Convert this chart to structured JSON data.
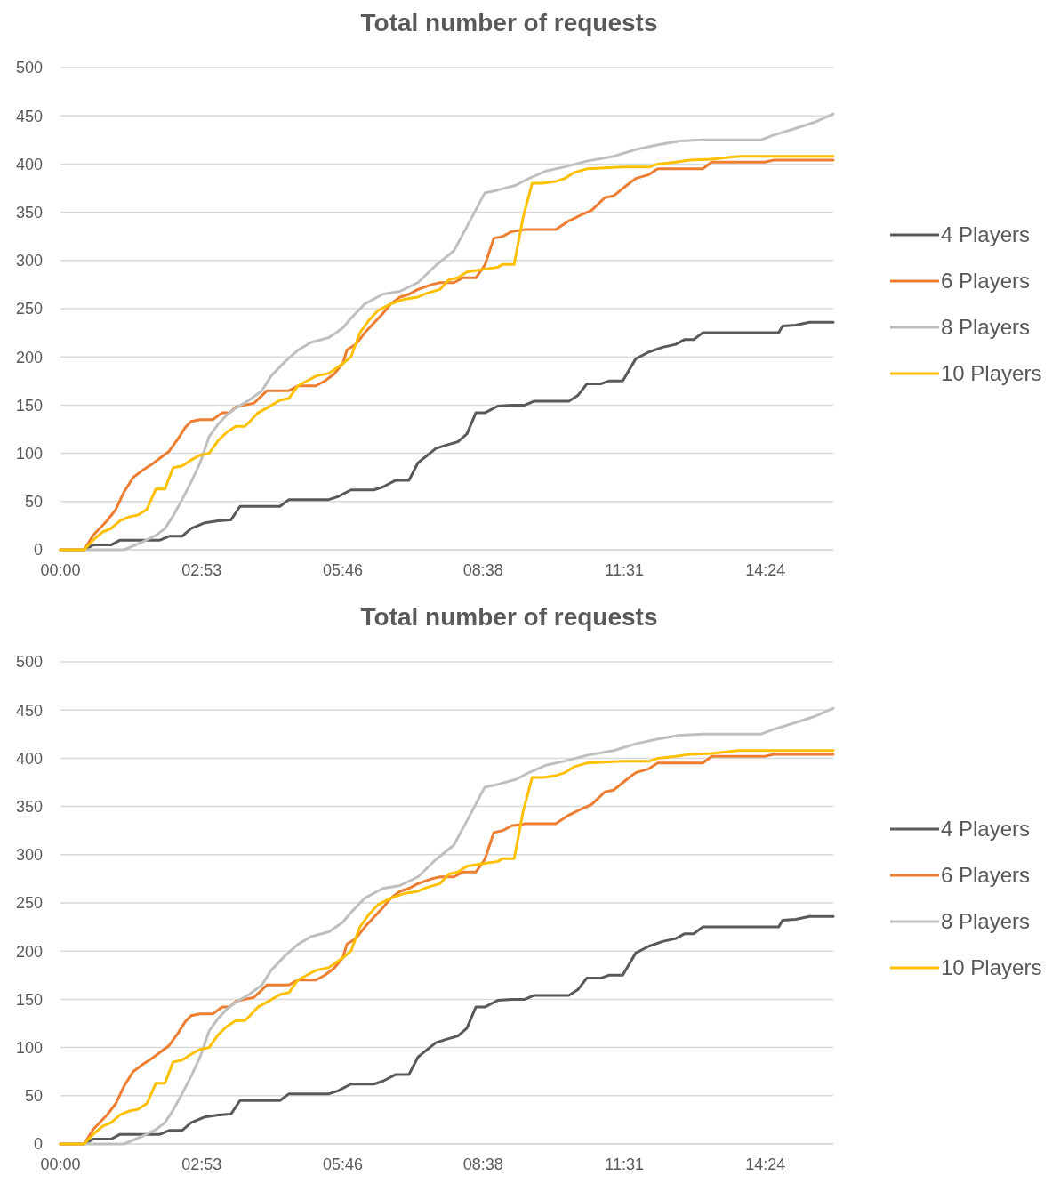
{
  "chart_data": [
    {
      "type": "line",
      "title": "Total number of requests",
      "xlim": [
        0,
        947
      ],
      "xticks": [
        {
          "value": 0,
          "label": "00:00"
        },
        {
          "value": 173,
          "label": "02:53"
        },
        {
          "value": 346,
          "label": "05:46"
        },
        {
          "value": 518,
          "label": "08:38"
        },
        {
          "value": 691,
          "label": "11:31"
        },
        {
          "value": 864,
          "label": "14:24"
        }
      ],
      "ylim": [
        0,
        500
      ],
      "yticks": [
        0,
        50,
        100,
        150,
        200,
        250,
        300,
        350,
        400,
        450,
        500
      ],
      "grid": "y",
      "legend": "right",
      "marker": "none",
      "series": [
        {
          "name": "4 Players",
          "color": "#595959",
          "x": [
            0,
            29,
            40,
            62,
            73,
            106,
            122,
            133,
            149,
            160,
            177,
            193,
            209,
            220,
            269,
            280,
            329,
            340,
            356,
            384,
            395,
            411,
            427,
            438,
            460,
            471,
            487,
            498,
            509,
            520,
            536,
            553,
            569,
            580,
            623,
            634,
            645,
            662,
            672,
            689,
            705,
            721,
            738,
            754,
            765,
            776,
            787,
            863,
            880,
            885,
            901,
            918,
            947
          ],
          "values": [
            0,
            0,
            5,
            5,
            10,
            10,
            10,
            14,
            14,
            22,
            28,
            30,
            31,
            45,
            45,
            52,
            52,
            55,
            62,
            62,
            65,
            72,
            72,
            90,
            105,
            108,
            112,
            120,
            142,
            142,
            149,
            150,
            150,
            154,
            154,
            160,
            172,
            172,
            175,
            175,
            198,
            205,
            210,
            213,
            218,
            218,
            225,
            225,
            225,
            232,
            233,
            236,
            236
          ]
        },
        {
          "name": "6 Players",
          "color": "#ed7d31",
          "x": [
            0,
            29,
            40,
            57,
            68,
            78,
            89,
            100,
            111,
            122,
            133,
            144,
            153,
            160,
            171,
            187,
            198,
            207,
            215,
            226,
            237,
            247,
            253,
            280,
            291,
            313,
            324,
            335,
            346,
            351,
            362,
            373,
            384,
            395,
            405,
            416,
            427,
            438,
            455,
            465,
            482,
            493,
            509,
            520,
            531,
            542,
            553,
            569,
            585,
            607,
            623,
            640,
            651,
            667,
            678,
            694,
            705,
            721,
            732,
            754,
            787,
            798,
            863,
            874,
            947
          ],
          "values": [
            0,
            0,
            15,
            30,
            42,
            60,
            75,
            82,
            88,
            95,
            102,
            115,
            127,
            133,
            135,
            135,
            142,
            142,
            148,
            150,
            152,
            160,
            165,
            165,
            170,
            170,
            175,
            182,
            193,
            207,
            213,
            225,
            235,
            245,
            255,
            262,
            265,
            270,
            275,
            277,
            277,
            282,
            282,
            295,
            323,
            325,
            330,
            332,
            332,
            332,
            341,
            348,
            352,
            365,
            367,
            378,
            385,
            389,
            395,
            395,
            395,
            402,
            402,
            404,
            404
          ]
        },
        {
          "name": "8 Players",
          "color": "#bfbfbf",
          "x": [
            0,
            78,
            100,
            117,
            128,
            138,
            149,
            160,
            171,
            182,
            193,
            204,
            215,
            231,
            247,
            258,
            275,
            291,
            307,
            329,
            346,
            356,
            373,
            395,
            416,
            438,
            460,
            482,
            498,
            520,
            536,
            558,
            574,
            596,
            618,
            645,
            678,
            705,
            732,
            760,
            787,
            858,
            874,
            901,
            923,
            947
          ],
          "values": [
            0,
            0,
            8,
            15,
            22,
            35,
            52,
            70,
            90,
            117,
            130,
            140,
            147,
            155,
            165,
            180,
            195,
            207,
            215,
            220,
            230,
            240,
            255,
            265,
            268,
            277,
            295,
            310,
            335,
            370,
            373,
            378,
            385,
            393,
            397,
            403,
            408,
            415,
            420,
            424,
            425,
            425,
            430,
            437,
            443,
            452
          ]
        },
        {
          "name": "10 Players",
          "color": "#ffc000",
          "x": [
            0,
            29,
            40,
            51,
            62,
            73,
            84,
            95,
            106,
            117,
            128,
            138,
            149,
            160,
            171,
            182,
            193,
            204,
            215,
            226,
            231,
            242,
            253,
            269,
            280,
            291,
            302,
            313,
            329,
            346,
            356,
            367,
            378,
            389,
            405,
            422,
            438,
            449,
            465,
            476,
            487,
            498,
            520,
            536,
            542,
            556,
            567,
            578,
            591,
            607,
            618,
            629,
            645,
            689,
            722,
            732,
            754,
            771,
            798,
            831,
            947
          ],
          "values": [
            0,
            0,
            10,
            18,
            22,
            30,
            34,
            36,
            42,
            63,
            63,
            85,
            87,
            93,
            98,
            100,
            113,
            122,
            128,
            128,
            132,
            142,
            147,
            155,
            157,
            170,
            175,
            180,
            183,
            193,
            200,
            225,
            238,
            248,
            255,
            260,
            262,
            266,
            270,
            280,
            282,
            288,
            291,
            293,
            296,
            296,
            345,
            380,
            380,
            382,
            385,
            391,
            395,
            397,
            397,
            400,
            402,
            404,
            405,
            408,
            408
          ]
        }
      ]
    },
    {
      "type": "line",
      "title": "Total number of requests",
      "xlim": [
        0,
        947
      ],
      "xticks": [
        {
          "value": 0,
          "label": "00:00"
        },
        {
          "value": 173,
          "label": "02:53"
        },
        {
          "value": 346,
          "label": "05:46"
        },
        {
          "value": 518,
          "label": "08:38"
        },
        {
          "value": 691,
          "label": "11:31"
        },
        {
          "value": 864,
          "label": "14:24"
        }
      ],
      "ylim": [
        0,
        500
      ],
      "yticks": [
        0,
        50,
        100,
        150,
        200,
        250,
        300,
        350,
        400,
        450,
        500
      ],
      "grid": "y",
      "legend": "right",
      "marker": "none",
      "series": [
        {
          "name": "4 Players",
          "color": "#595959",
          "x": [
            0,
            29,
            40,
            62,
            73,
            106,
            122,
            133,
            149,
            160,
            177,
            193,
            209,
            220,
            269,
            280,
            329,
            340,
            356,
            384,
            395,
            411,
            427,
            438,
            460,
            471,
            487,
            498,
            509,
            520,
            536,
            553,
            569,
            580,
            623,
            634,
            645,
            662,
            672,
            689,
            705,
            721,
            738,
            754,
            765,
            776,
            787,
            863,
            880,
            885,
            901,
            918,
            947
          ],
          "values": [
            0,
            0,
            5,
            5,
            10,
            10,
            10,
            14,
            14,
            22,
            28,
            30,
            31,
            45,
            45,
            52,
            52,
            55,
            62,
            62,
            65,
            72,
            72,
            90,
            105,
            108,
            112,
            120,
            142,
            142,
            149,
            150,
            150,
            154,
            154,
            160,
            172,
            172,
            175,
            175,
            198,
            205,
            210,
            213,
            218,
            218,
            225,
            225,
            225,
            232,
            233,
            236,
            236
          ]
        },
        {
          "name": "6 Players",
          "color": "#ed7d31",
          "x": [
            0,
            29,
            40,
            57,
            68,
            78,
            89,
            100,
            111,
            122,
            133,
            144,
            153,
            160,
            171,
            187,
            198,
            207,
            215,
            226,
            237,
            247,
            253,
            280,
            291,
            313,
            324,
            335,
            346,
            351,
            362,
            373,
            384,
            395,
            405,
            416,
            427,
            438,
            455,
            465,
            482,
            493,
            509,
            520,
            531,
            542,
            553,
            569,
            585,
            607,
            623,
            640,
            651,
            667,
            678,
            694,
            705,
            721,
            732,
            754,
            787,
            798,
            863,
            874,
            947
          ],
          "values": [
            0,
            0,
            15,
            30,
            42,
            60,
            75,
            82,
            88,
            95,
            102,
            115,
            127,
            133,
            135,
            135,
            142,
            142,
            148,
            150,
            152,
            160,
            165,
            165,
            170,
            170,
            175,
            182,
            193,
            207,
            213,
            225,
            235,
            245,
            255,
            262,
            265,
            270,
            275,
            277,
            277,
            282,
            282,
            295,
            323,
            325,
            330,
            332,
            332,
            332,
            341,
            348,
            352,
            365,
            367,
            378,
            385,
            389,
            395,
            395,
            395,
            402,
            402,
            404,
            404
          ]
        },
        {
          "name": "8 Players",
          "color": "#bfbfbf",
          "x": [
            0,
            78,
            100,
            117,
            128,
            138,
            149,
            160,
            171,
            182,
            193,
            204,
            215,
            231,
            247,
            258,
            275,
            291,
            307,
            329,
            346,
            356,
            373,
            395,
            416,
            438,
            460,
            482,
            498,
            520,
            536,
            558,
            574,
            596,
            618,
            645,
            678,
            705,
            732,
            760,
            787,
            858,
            874,
            901,
            923,
            947
          ],
          "values": [
            0,
            0,
            8,
            15,
            22,
            35,
            52,
            70,
            90,
            117,
            130,
            140,
            147,
            155,
            165,
            180,
            195,
            207,
            215,
            220,
            230,
            240,
            255,
            265,
            268,
            277,
            295,
            310,
            335,
            370,
            373,
            378,
            385,
            393,
            397,
            403,
            408,
            415,
            420,
            424,
            425,
            425,
            430,
            437,
            443,
            452
          ]
        },
        {
          "name": "10 Players",
          "color": "#ffc000",
          "x": [
            0,
            29,
            40,
            51,
            62,
            73,
            84,
            95,
            106,
            117,
            128,
            138,
            149,
            160,
            171,
            182,
            193,
            204,
            215,
            226,
            231,
            242,
            253,
            269,
            280,
            291,
            302,
            313,
            329,
            346,
            356,
            367,
            378,
            389,
            405,
            422,
            438,
            449,
            465,
            476,
            487,
            498,
            520,
            536,
            542,
            556,
            567,
            578,
            591,
            607,
            618,
            629,
            645,
            689,
            722,
            732,
            754,
            771,
            798,
            831,
            947
          ],
          "values": [
            0,
            0,
            10,
            18,
            22,
            30,
            34,
            36,
            42,
            63,
            63,
            85,
            87,
            93,
            98,
            100,
            113,
            122,
            128,
            128,
            132,
            142,
            147,
            155,
            157,
            170,
            175,
            180,
            183,
            193,
            200,
            225,
            238,
            248,
            255,
            260,
            262,
            266,
            270,
            280,
            282,
            288,
            291,
            293,
            296,
            296,
            345,
            380,
            380,
            382,
            385,
            391,
            395,
            397,
            397,
            400,
            402,
            404,
            405,
            408,
            408
          ]
        }
      ]
    }
  ]
}
